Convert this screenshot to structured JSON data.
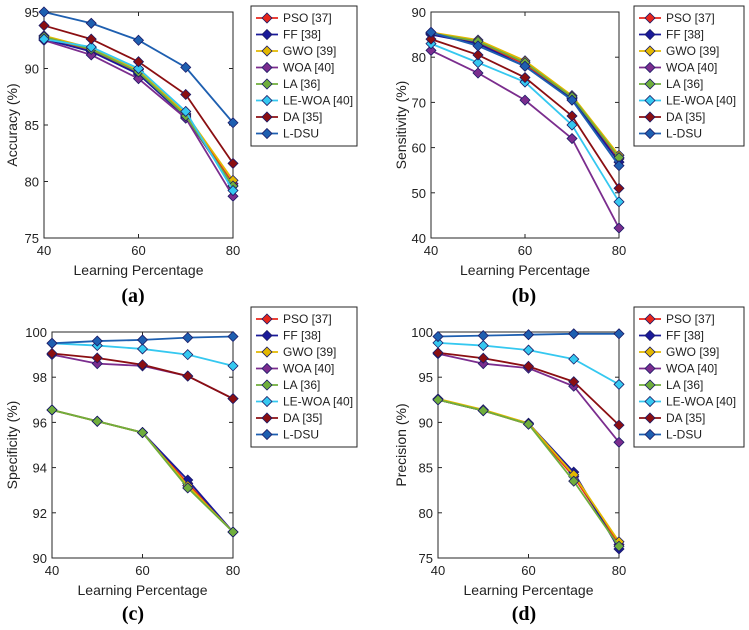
{
  "chart_data": [
    {
      "type": "line",
      "panel_label": "(a)",
      "xlabel": "Learning Percentage",
      "ylabel": "Accuracy (%)",
      "x": [
        40,
        50,
        60,
        70,
        80
      ],
      "xlim": [
        40,
        80
      ],
      "ylim": [
        75,
        95
      ],
      "xticks": [
        40,
        60,
        80
      ],
      "yticks": [
        75,
        80,
        85,
        90,
        95
      ],
      "legend_position": "outside-right",
      "series": [
        {
          "name": "PSO [37]",
          "color": "#e8261c",
          "values": [
            92.7,
            91.6,
            89.6,
            85.9,
            79.8
          ]
        },
        {
          "name": "FF [38]",
          "color": "#1a1a99",
          "values": [
            92.6,
            91.5,
            89.5,
            85.7,
            79.6
          ]
        },
        {
          "name": "GWO [39]",
          "color": "#e3b800",
          "values": [
            92.9,
            91.8,
            89.9,
            86.0,
            80.1
          ]
        },
        {
          "name": "WOA [40]",
          "color": "#7b2d8e",
          "values": [
            92.5,
            91.2,
            89.1,
            85.6,
            78.7
          ]
        },
        {
          "name": "LA [36]",
          "color": "#6fae3c",
          "values": [
            92.8,
            91.7,
            89.7,
            85.8,
            79.6
          ]
        },
        {
          "name": "LE-WOA [40]",
          "color": "#35c8f0",
          "values": [
            92.6,
            91.9,
            90.0,
            86.2,
            79.2
          ]
        },
        {
          "name": "DA [35]",
          "color": "#8b0f12",
          "values": [
            93.8,
            92.6,
            90.6,
            87.7,
            81.6
          ]
        },
        {
          "name": "L-DSU",
          "color": "#1e5fb0",
          "values": [
            95.0,
            94.0,
            92.5,
            90.1,
            85.2
          ]
        }
      ]
    },
    {
      "type": "line",
      "panel_label": "(b)",
      "xlabel": "Learning Percentage",
      "ylabel": "Sensitivity (%)",
      "x": [
        40,
        50,
        60,
        70,
        80
      ],
      "xlim": [
        40,
        80
      ],
      "ylim": [
        40,
        90
      ],
      "xticks": [
        40,
        60,
        80
      ],
      "yticks": [
        40,
        50,
        60,
        70,
        80,
        90
      ],
      "legend_position": "outside-right",
      "series": [
        {
          "name": "PSO [37]",
          "color": "#e8261c",
          "values": [
            85.2,
            83.2,
            78.5,
            71.0,
            57.5
          ]
        },
        {
          "name": "FF [38]",
          "color": "#1a1a99",
          "values": [
            85.0,
            83.0,
            78.0,
            70.8,
            56.8
          ]
        },
        {
          "name": "GWO [39]",
          "color": "#e3b800",
          "values": [
            85.5,
            83.8,
            79.2,
            71.5,
            58.3
          ]
        },
        {
          "name": "WOA [40]",
          "color": "#7b2d8e",
          "values": [
            81.5,
            76.5,
            70.5,
            62.0,
            42.2
          ]
        },
        {
          "name": "LA [36]",
          "color": "#6fae3c",
          "values": [
            85.3,
            83.5,
            78.8,
            71.2,
            57.8
          ]
        },
        {
          "name": "LE-WOA [40]",
          "color": "#35c8f0",
          "values": [
            83.0,
            78.8,
            74.5,
            65.0,
            48.0
          ]
        },
        {
          "name": "DA [35]",
          "color": "#8b0f12",
          "values": [
            84.0,
            80.5,
            75.5,
            67.0,
            51.0
          ]
        },
        {
          "name": "L-DSU",
          "color": "#1e5fb0",
          "values": [
            85.5,
            82.5,
            78.0,
            70.5,
            56.0
          ]
        }
      ]
    },
    {
      "type": "line",
      "panel_label": "(c)",
      "xlabel": "Learning Percentage",
      "ylabel": "Specificity (%)",
      "x": [
        40,
        50,
        60,
        70,
        80
      ],
      "xlim": [
        40,
        80
      ],
      "ylim": [
        90,
        100
      ],
      "xticks": [
        40,
        60,
        80
      ],
      "yticks": [
        90,
        92,
        94,
        96,
        98,
        100
      ],
      "legend_position": "outside-right",
      "series": [
        {
          "name": "PSO [37]",
          "color": "#e8261c",
          "values": [
            96.55,
            96.05,
            95.55,
            93.3,
            91.15
          ]
        },
        {
          "name": "FF [38]",
          "color": "#1a1a99",
          "values": [
            96.55,
            96.05,
            95.55,
            93.45,
            91.15
          ]
        },
        {
          "name": "GWO [39]",
          "color": "#e3b800",
          "values": [
            96.55,
            96.05,
            95.55,
            93.2,
            91.15
          ]
        },
        {
          "name": "WOA [40]",
          "color": "#7b2d8e",
          "values": [
            99.0,
            98.6,
            98.5,
            98.05,
            97.05
          ]
        },
        {
          "name": "LA [36]",
          "color": "#6fae3c",
          "values": [
            96.55,
            96.05,
            95.55,
            93.1,
            91.15
          ]
        },
        {
          "name": "LE-WOA [40]",
          "color": "#35c8f0",
          "values": [
            99.5,
            99.4,
            99.25,
            99.0,
            98.5
          ]
        },
        {
          "name": "DA [35]",
          "color": "#8b0f12",
          "values": [
            99.05,
            98.85,
            98.55,
            98.05,
            97.05
          ]
        },
        {
          "name": "L-DSU",
          "color": "#1e5fb0",
          "values": [
            99.5,
            99.6,
            99.65,
            99.75,
            99.8
          ]
        }
      ]
    },
    {
      "type": "line",
      "panel_label": "(d)",
      "xlabel": "Learning Percentage",
      "ylabel": "Precision (%)",
      "x": [
        40,
        50,
        60,
        70,
        80
      ],
      "xlim": [
        40,
        80
      ],
      "ylim": [
        75,
        100
      ],
      "xticks": [
        40,
        60,
        80
      ],
      "yticks": [
        75,
        80,
        85,
        90,
        95,
        100
      ],
      "legend_position": "outside-right",
      "series": [
        {
          "name": "PSO [37]",
          "color": "#e8261c",
          "values": [
            92.5,
            91.3,
            89.8,
            84.0,
            76.5
          ]
        },
        {
          "name": "FF [38]",
          "color": "#1a1a99",
          "values": [
            92.5,
            91.3,
            89.9,
            84.5,
            76.0
          ]
        },
        {
          "name": "GWO [39]",
          "color": "#e3b800",
          "values": [
            92.6,
            91.4,
            89.9,
            84.2,
            76.8
          ]
        },
        {
          "name": "WOA [40]",
          "color": "#7b2d8e",
          "values": [
            97.6,
            96.5,
            96.0,
            94.0,
            87.8
          ]
        },
        {
          "name": "LA [36]",
          "color": "#6fae3c",
          "values": [
            92.5,
            91.3,
            89.8,
            83.5,
            76.3
          ]
        },
        {
          "name": "LE-WOA [40]",
          "color": "#35c8f0",
          "values": [
            98.8,
            98.5,
            98.0,
            97.0,
            94.2
          ]
        },
        {
          "name": "DA [35]",
          "color": "#8b0f12",
          "values": [
            97.7,
            97.1,
            96.2,
            94.5,
            89.7
          ]
        },
        {
          "name": "L-DSU",
          "color": "#1e5fb0",
          "values": [
            99.5,
            99.6,
            99.7,
            99.8,
            99.8
          ]
        }
      ]
    }
  ]
}
